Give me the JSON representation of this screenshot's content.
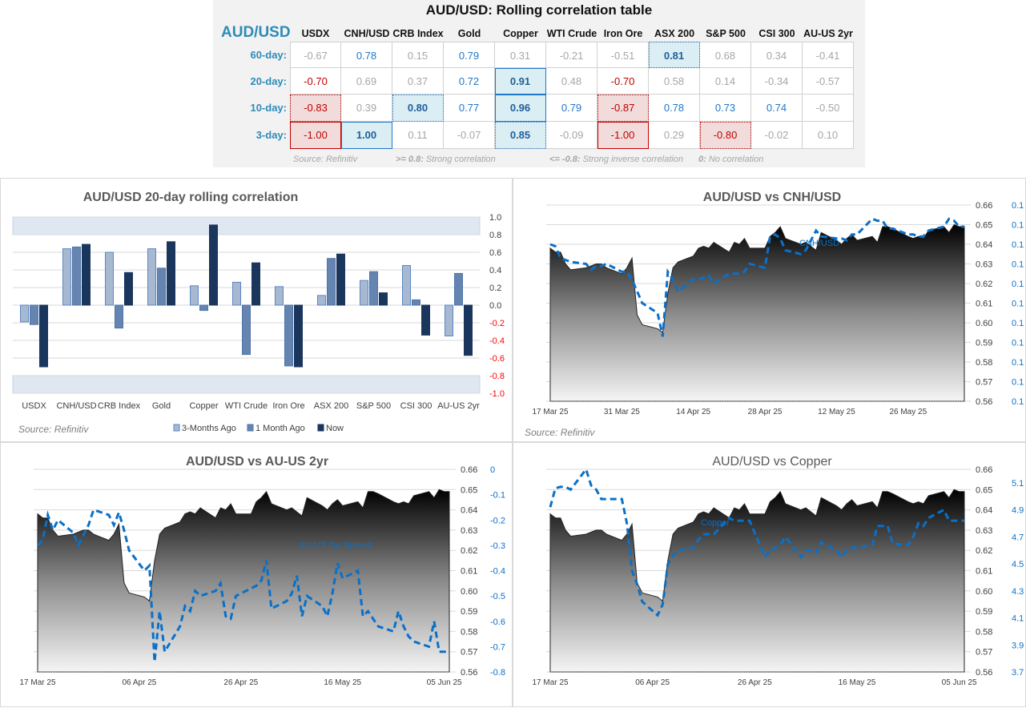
{
  "table": {
    "title": "AUD/USD: Rolling correlation table",
    "corner_label": "AUD/USD",
    "columns": [
      "USDX",
      "CNH/USD",
      "CRB Index",
      "Gold",
      "Copper",
      "WTI Crude",
      "Iron Ore",
      "ASX 200",
      "S&P 500",
      "CSI 300",
      "AU-US 2yr"
    ],
    "rows": [
      {
        "label": "60-day:",
        "values": [
          "-0.67",
          "0.78",
          "0.15",
          "0.79",
          "0.31",
          "-0.21",
          "-0.51",
          "0.81",
          "0.68",
          "0.34",
          "-0.41"
        ]
      },
      {
        "label": "20-day:",
        "values": [
          "-0.70",
          "0.69",
          "0.37",
          "0.72",
          "0.91",
          "0.48",
          "-0.70",
          "0.58",
          "0.14",
          "-0.34",
          "-0.57"
        ]
      },
      {
        "label": "10-day:",
        "values": [
          "-0.83",
          "0.39",
          "0.80",
          "0.77",
          "0.96",
          "0.79",
          "-0.87",
          "0.78",
          "0.73",
          "0.74",
          "-0.50"
        ]
      },
      {
        "label": "3-day:",
        "values": [
          "-1.00",
          "1.00",
          "0.11",
          "-0.07",
          "0.85",
          "-0.09",
          "-1.00",
          "0.29",
          "-0.80",
          "-0.02",
          "0.10"
        ]
      }
    ],
    "footer": {
      "source": "Source: Refinitiv",
      "strong_key": ">= 0.8:",
      "strong_text": "Strong correlation",
      "inverse_key": "<= -0.8:",
      "inverse_text": "Strong inverse correlation",
      "none_key": "0:",
      "none_text": "No correlation"
    }
  },
  "colors": {
    "accent_blue": "#1f77c7",
    "label_teal": "#2e8bb8",
    "negative_red": "#c00000",
    "strong_pos_bg": "#dbeef4",
    "strong_neg_bg": "#f2dcdb",
    "band": "#dfe7f1",
    "bar_3m": "#a7b9d1",
    "bar_1m": "#6585b0",
    "bar_now": "#1a365d",
    "line": "#0a70c8"
  },
  "chart_data": [
    {
      "type": "bar",
      "title": "AUD/USD 20-day rolling correlation",
      "categories": [
        "USDX",
        "CNH/USD",
        "CRB Index",
        "Gold",
        "Copper",
        "WTI Crude",
        "Iron Ore",
        "ASX 200",
        "S&P 500",
        "CSI 300",
        "AU-US 2yr"
      ],
      "series": [
        {
          "name": "3-Months Ago",
          "values": [
            -0.19,
            0.64,
            0.6,
            0.64,
            0.22,
            0.26,
            0.21,
            0.11,
            0.28,
            0.45,
            -0.35
          ]
        },
        {
          "name": "1 Month Ago",
          "values": [
            -0.22,
            0.66,
            -0.26,
            0.42,
            -0.06,
            -0.56,
            -0.69,
            0.53,
            0.38,
            0.06,
            0.36
          ]
        },
        {
          "name": "Now",
          "values": [
            -0.7,
            0.69,
            0.37,
            0.72,
            0.91,
            0.48,
            -0.7,
            0.58,
            0.14,
            -0.34,
            -0.57
          ]
        }
      ],
      "ylim": [
        -1.0,
        1.0
      ],
      "yticks": [
        "1.0",
        "0.8",
        "0.6",
        "0.4",
        "0.2",
        "0.0",
        "-0.2",
        "-0.4",
        "-0.6",
        "-0.8",
        "-1.0"
      ],
      "bands": [
        [
          0.8,
          1.0
        ],
        [
          -1.0,
          -0.8
        ]
      ],
      "grid": true,
      "legend": "bottom",
      "source": "Source: Refinitiv"
    },
    {
      "type": "area+line",
      "title": "AUD/USD vs CNH/USD",
      "series_label": "CNH/USD",
      "source": "Source: Refinitiv",
      "xticks": [
        "17 Mar 25",
        "31 Mar 25",
        "14 Apr 25",
        "28 Apr 25",
        "12 May 25",
        "26 May 25"
      ],
      "xtick_step_days": 14,
      "secondary_ylim": [
        0.13,
        0.14
      ],
      "secondary_step": 0.001,
      "secondary_decimals": 1,
      "secondary": [
        0.138,
        0.1379,
        0.1373,
        0.1372,
        0.1371,
        0.137,
        0.1367,
        0.1369,
        0.1369,
        0.137,
        0.1366,
        0.1366,
        0.1362,
        0.1356,
        0.135,
        0.1345,
        0.1333,
        0.1366,
        0.1362,
        0.1356,
        0.1362,
        0.1362,
        0.1363,
        0.1364,
        0.136,
        0.1365,
        0.1365,
        0.1365,
        0.1366,
        0.137,
        0.1368,
        0.1384,
        0.1385,
        0.1383,
        0.1377,
        0.1375,
        0.1377,
        0.1382,
        0.1387,
        0.1384,
        0.1383,
        0.1383,
        0.1382,
        0.1385,
        0.1385,
        0.1393,
        0.1392,
        0.1392,
        0.1388,
        0.1388,
        0.1385,
        0.1385,
        0.1384,
        0.1384,
        0.1387,
        0.1389,
        0.1393,
        0.1392,
        0.1389,
        0.1389
      ]
    },
    {
      "type": "area+line",
      "title": "AUD/USD vs AU-US 2yr",
      "series_label": "AU-US 2yr Spread",
      "xticks": [
        "17 Mar 25",
        "06 Apr 25",
        "26 Apr 25",
        "16 May 25",
        "05 Jun 25"
      ],
      "xtick_step_days": 20,
      "secondary_ylim": [
        -0.8,
        0
      ],
      "secondary_step": 0.1,
      "secondary_decimals": 1,
      "secondary": [
        -0.3,
        -0.28,
        -0.18,
        -0.24,
        -0.2,
        -0.25,
        -0.3,
        -0.26,
        -0.22,
        -0.16,
        -0.18,
        -0.22,
        -0.17,
        -0.24,
        -0.32,
        -0.4,
        -0.38,
        -0.76,
        -0.56,
        -0.72,
        -0.62,
        -0.54,
        -0.56,
        -0.48,
        -0.5,
        -0.48,
        -0.45,
        -0.58,
        -0.59,
        -0.5,
        -0.47,
        -0.46,
        -0.44,
        -0.36,
        -0.55,
        -0.52,
        -0.49,
        -0.42,
        -0.58,
        -0.5,
        -0.54,
        -0.58,
        -0.49,
        -0.37,
        -0.43,
        -0.4,
        -0.58,
        -0.56,
        -0.59,
        -0.62,
        -0.64,
        -0.56,
        -0.62,
        -0.66,
        -0.68,
        -0.7,
        -0.6,
        -0.72,
        -0.72,
        -0.72
      ]
    },
    {
      "type": "area+line",
      "title": "AUD/USD vs Copper",
      "series_label": "Copper",
      "xticks": [
        "17 Mar 25",
        "06 Apr 25",
        "26 Apr 25",
        "16 May 25",
        "05 Jun 25"
      ],
      "xtick_step_days": 20,
      "secondary_ylim": [
        3.7,
        5.2
      ],
      "secondary_ticks": [
        3.7,
        3.9,
        4.1,
        4.3,
        4.5,
        4.7,
        4.9,
        5.1
      ],
      "secondary_decimals": 1,
      "secondary": [
        4.92,
        5.06,
        5.07,
        5.07,
        5.05,
        5.2,
        5.08,
        5.05,
        4.98,
        4.98,
        4.98,
        4.8,
        4.45,
        4.35,
        4.22,
        4.12,
        4.2,
        4.5,
        4.56,
        4.6,
        4.62,
        4.68,
        4.72,
        4.72,
        4.72,
        4.84,
        4.82,
        4.82,
        4.82,
        4.82,
        4.55,
        4.6,
        4.62,
        4.64,
        4.7,
        4.55,
        4.6,
        4.6,
        4.58,
        4.66,
        4.6,
        4.55,
        4.6,
        4.62,
        4.62,
        4.64,
        4.78,
        4.78,
        4.78,
        4.65,
        4.64,
        4.7,
        4.8,
        4.78,
        4.84,
        4.9,
        4.82,
        4.82,
        4.82,
        4.82
      ]
    }
  ],
  "audusd": {
    "x_range": [
      "2025-03-17",
      "2025-06-06"
    ],
    "ylim": [
      0.56,
      0.66
    ],
    "yticks": [
      "0.66",
      "0.65",
      "0.64",
      "0.63",
      "0.62",
      "0.61",
      "0.60",
      "0.59",
      "0.58",
      "0.57",
      "0.56"
    ],
    "dates": [
      "2025-03-17",
      "2025-03-18",
      "2025-03-19",
      "2025-03-20",
      "2025-03-21",
      "2025-03-24",
      "2025-03-25",
      "2025-03-26",
      "2025-03-27",
      "2025-03-28",
      "2025-03-31",
      "2025-04-01",
      "2025-04-02",
      "2025-04-03",
      "2025-04-04",
      "2025-04-07",
      "2025-04-08",
      "2025-04-09",
      "2025-04-10",
      "2025-04-11",
      "2025-04-14",
      "2025-04-15",
      "2025-04-16",
      "2025-04-17",
      "2025-04-18",
      "2025-04-21",
      "2025-04-22",
      "2025-04-23",
      "2025-04-24",
      "2025-04-25",
      "2025-04-28",
      "2025-04-29",
      "2025-04-30",
      "2025-05-01",
      "2025-05-02",
      "2025-05-05",
      "2025-05-06",
      "2025-05-07",
      "2025-05-08",
      "2025-05-09",
      "2025-05-12",
      "2025-05-13",
      "2025-05-14",
      "2025-05-15",
      "2025-05-16",
      "2025-05-19",
      "2025-05-20",
      "2025-05-21",
      "2025-05-22",
      "2025-05-23",
      "2025-05-26",
      "2025-05-27",
      "2025-05-28",
      "2025-05-29",
      "2025-05-30",
      "2025-06-02",
      "2025-06-03",
      "2025-06-04",
      "2025-06-05",
      "2025-06-06"
    ],
    "values": [
      0.638,
      0.636,
      0.636,
      0.63,
      0.627,
      0.628,
      0.629,
      0.63,
      0.63,
      0.628,
      0.625,
      0.628,
      0.633,
      0.604,
      0.599,
      0.597,
      0.595,
      0.615,
      0.628,
      0.631,
      0.634,
      0.638,
      0.639,
      0.638,
      0.641,
      0.636,
      0.641,
      0.64,
      0.643,
      0.638,
      0.638,
      0.644,
      0.646,
      0.649,
      0.643,
      0.64,
      0.641,
      0.639,
      0.637,
      0.646,
      0.642,
      0.64,
      0.643,
      0.645,
      0.642,
      0.644,
      0.641,
      0.649,
      0.649,
      0.648,
      0.644,
      0.643,
      0.644,
      0.643,
      0.647,
      0.649,
      0.646,
      0.65,
      0.649,
      0.649
    ]
  }
}
